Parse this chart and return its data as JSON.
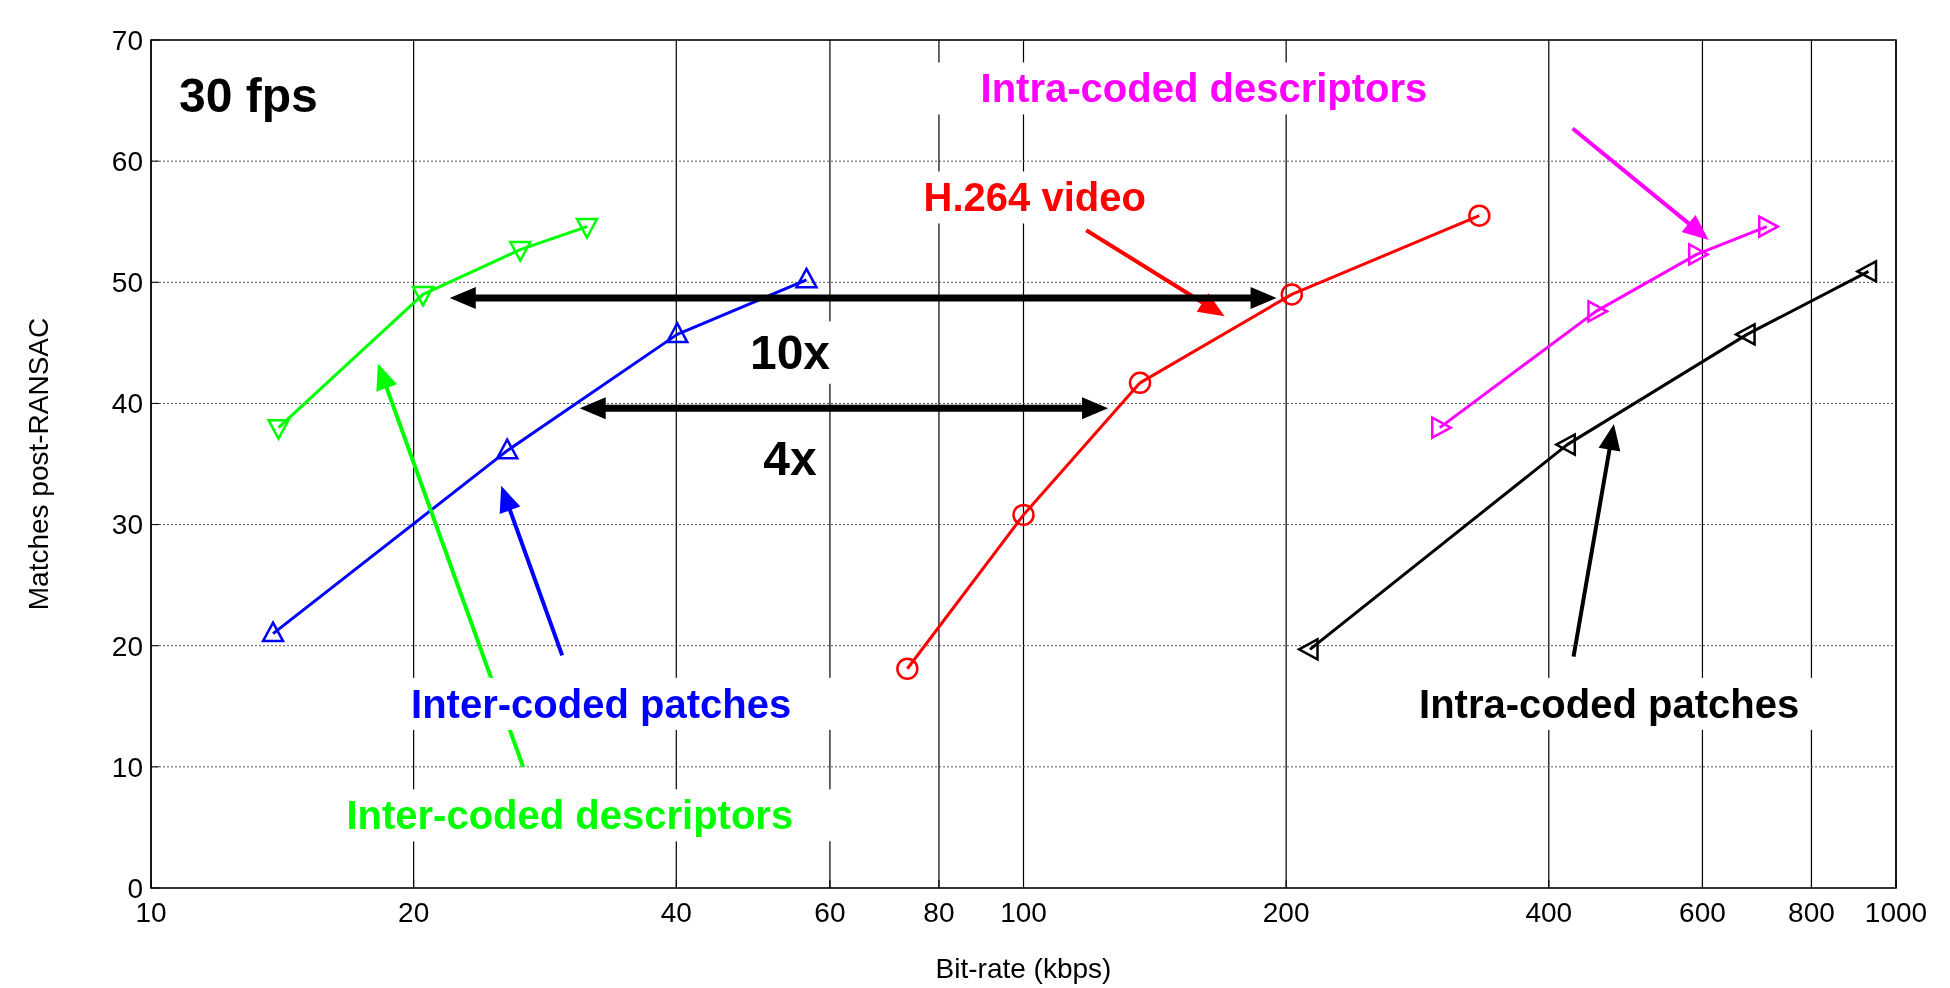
{
  "chart_data": {
    "type": "line",
    "xlabel": "Bit-rate (kbps)",
    "ylabel": "Matches post-RANSAC",
    "log": "x",
    "xlim": [
      10,
      1000
    ],
    "ylim": [
      0,
      70
    ],
    "xticks": [
      10,
      20,
      40,
      60,
      80,
      100,
      200,
      400,
      600,
      800,
      1000
    ],
    "yticks": [
      0,
      10,
      20,
      30,
      40,
      50,
      60,
      70
    ],
    "grid": true,
    "legend": false,
    "line_style": "solid",
    "series": [
      {
        "name": "H.264 video",
        "color": "#ff0000",
        "marker": "circle",
        "x": [
          73.6,
          100,
          136,
          203,
          333
        ],
        "values": [
          18.1,
          30.8,
          41.7,
          49.0,
          55.5
        ]
      },
      {
        "name": "Inter-coded patches",
        "color": "#0000ff",
        "marker": "triangle",
        "x": [
          13.8,
          25.6,
          40.1,
          56.4
        ],
        "values": [
          21.0,
          36.1,
          45.7,
          50.2
        ]
      },
      {
        "name": "Inter-coded descriptors",
        "color": "#00ff00",
        "marker": "triangle",
        "x": [
          14.0,
          20.5,
          26.5,
          31.6
        ],
        "values": [
          38.0,
          49.0,
          52.7,
          54.6
        ]
      },
      {
        "name": "Intra-coded descriptors",
        "color": "#ff00ff",
        "marker": "triangle",
        "x": [
          300,
          453,
          591,
          711
        ],
        "values": [
          38.0,
          47.6,
          52.3,
          54.6
        ]
      },
      {
        "name": "Intra-coded patches",
        "color": "#000000",
        "marker": "triangle",
        "x": [
          213,
          420,
          675,
          930
        ],
        "values": [
          19.7,
          36.6,
          45.7,
          50.9
        ]
      }
    ],
    "annotations": [
      "30 fps",
      "10x",
      "4x"
    ]
  }
}
